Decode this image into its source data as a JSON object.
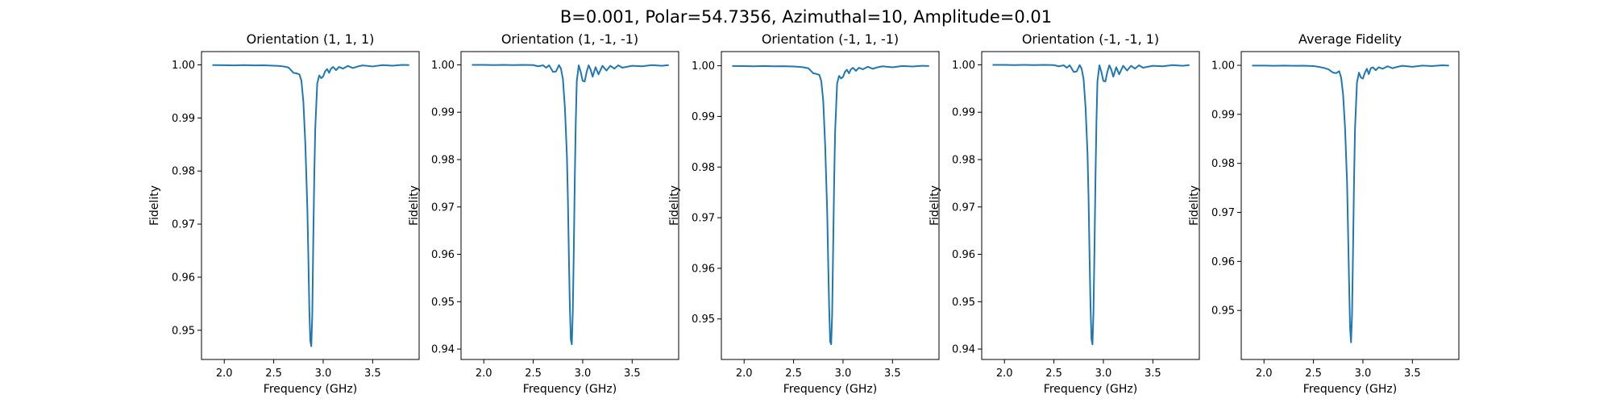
{
  "figure": {
    "suptitle": "B=0.001, Polar=54.7356, Azimuthal=10, Amplitude=0.01"
  },
  "chart_data": [
    {
      "type": "line",
      "title": "Orientation (1, 1, 1)",
      "xlabel": "Frequency (GHz)",
      "ylabel": "Fidelity",
      "xlim": [
        1.77,
        3.97
      ],
      "ylim": [
        0.9445,
        1.0025
      ],
      "xticks": [
        "2.0",
        "2.5",
        "3.0",
        "3.5"
      ],
      "yticks": [
        "0.95",
        "0.96",
        "0.97",
        "0.98",
        "0.99",
        "1.00"
      ],
      "grid": false,
      "color": "#1f77b4",
      "x": [
        1.88,
        2.0,
        2.1,
        2.2,
        2.3,
        2.4,
        2.5,
        2.55,
        2.6,
        2.65,
        2.7,
        2.73,
        2.76,
        2.78,
        2.8,
        2.82,
        2.84,
        2.85,
        2.86,
        2.87,
        2.88,
        2.89,
        2.9,
        2.91,
        2.92,
        2.94,
        2.96,
        2.98,
        3.0,
        3.02,
        3.04,
        3.06,
        3.08,
        3.1,
        3.13,
        3.16,
        3.2,
        3.25,
        3.3,
        3.35,
        3.4,
        3.5,
        3.6,
        3.7,
        3.8,
        3.87
      ],
      "y": [
        0.99995,
        0.99994,
        0.9999,
        0.99995,
        0.9999,
        0.99992,
        0.99985,
        0.9998,
        0.9997,
        0.9995,
        0.9985,
        0.9984,
        0.9982,
        0.997,
        0.993,
        0.985,
        0.973,
        0.964,
        0.954,
        0.948,
        0.947,
        0.953,
        0.967,
        0.979,
        0.988,
        0.9965,
        0.998,
        0.9975,
        0.9978,
        0.9988,
        0.9992,
        0.9985,
        0.9993,
        0.9996,
        0.999,
        0.9996,
        0.9993,
        0.9998,
        0.9994,
        0.9997,
        0.9999,
        0.9997,
        0.99995,
        0.99985,
        1.0,
        0.99995
      ]
    },
    {
      "type": "line",
      "title": "Orientation (1, -1, -1)",
      "xlabel": "Frequency (GHz)",
      "ylabel": "Fidelity",
      "xlim": [
        1.77,
        3.97
      ],
      "ylim": [
        0.9378,
        1.0028
      ],
      "xticks": [
        "2.0",
        "2.5",
        "3.0",
        "3.5"
      ],
      "yticks": [
        "0.94",
        "0.95",
        "0.96",
        "0.97",
        "0.98",
        "0.99",
        "1.00"
      ],
      "grid": false,
      "color": "#1f77b4",
      "x": [
        1.88,
        2.0,
        2.1,
        2.2,
        2.3,
        2.4,
        2.5,
        2.55,
        2.6,
        2.63,
        2.66,
        2.7,
        2.73,
        2.76,
        2.78,
        2.8,
        2.82,
        2.84,
        2.85,
        2.86,
        2.87,
        2.88,
        2.89,
        2.9,
        2.91,
        2.92,
        2.93,
        2.94,
        2.96,
        2.98,
        3.0,
        3.02,
        3.04,
        3.06,
        3.08,
        3.1,
        3.13,
        3.16,
        3.2,
        3.24,
        3.28,
        3.32,
        3.36,
        3.4,
        3.5,
        3.6,
        3.7,
        3.8,
        3.87
      ],
      "y": [
        1.0,
        1.0,
        0.99995,
        1.0,
        0.99995,
        1.0,
        0.99995,
        0.9997,
        0.9999,
        0.9994,
        0.9999,
        0.9985,
        0.9986,
        0.99995,
        0.9992,
        0.997,
        0.991,
        0.981,
        0.972,
        0.96,
        0.949,
        0.942,
        0.941,
        0.948,
        0.961,
        0.976,
        0.988,
        0.9965,
        0.9999,
        0.9985,
        0.9966,
        0.9965,
        0.9985,
        0.9999,
        0.999,
        0.9975,
        0.9995,
        0.998,
        0.9998,
        0.9988,
        0.9998,
        0.9992,
        0.9999,
        0.9994,
        0.9998,
        0.9997,
        0.99995,
        0.9998,
        0.99995
      ]
    },
    {
      "type": "line",
      "title": "Orientation (-1, 1, -1)",
      "xlabel": "Frequency (GHz)",
      "ylabel": "Fidelity",
      "xlim": [
        1.77,
        3.97
      ],
      "ylim": [
        0.942,
        1.0028
      ],
      "xticks": [
        "2.0",
        "2.5",
        "3.0",
        "3.5"
      ],
      "yticks": [
        "0.95",
        "0.96",
        "0.97",
        "0.98",
        "0.99",
        "1.00"
      ],
      "grid": false,
      "color": "#1f77b4",
      "x": [
        1.88,
        2.0,
        2.1,
        2.2,
        2.3,
        2.4,
        2.5,
        2.55,
        2.6,
        2.65,
        2.7,
        2.73,
        2.76,
        2.78,
        2.8,
        2.82,
        2.84,
        2.85,
        2.86,
        2.87,
        2.88,
        2.89,
        2.9,
        2.91,
        2.92,
        2.94,
        2.96,
        2.98,
        3.0,
        3.02,
        3.04,
        3.06,
        3.08,
        3.1,
        3.13,
        3.16,
        3.2,
        3.25,
        3.3,
        3.35,
        3.4,
        3.5,
        3.6,
        3.7,
        3.8,
        3.87
      ],
      "y": [
        0.99995,
        0.99994,
        0.9999,
        0.99995,
        0.9999,
        0.99992,
        0.99985,
        0.9998,
        0.9997,
        0.9995,
        0.9985,
        0.9984,
        0.9982,
        0.997,
        0.993,
        0.984,
        0.971,
        0.961,
        0.952,
        0.9455,
        0.945,
        0.951,
        0.964,
        0.977,
        0.987,
        0.9965,
        0.998,
        0.9975,
        0.9978,
        0.9988,
        0.9992,
        0.9985,
        0.9993,
        0.9996,
        0.999,
        0.9996,
        0.9993,
        0.9998,
        0.9994,
        0.9997,
        0.9999,
        0.9997,
        0.99995,
        0.99985,
        1.0,
        0.99995
      ]
    },
    {
      "type": "line",
      "title": "Orientation (-1, -1, 1)",
      "xlabel": "Frequency (GHz)",
      "ylabel": "Fidelity",
      "xlim": [
        1.77,
        3.97
      ],
      "ylim": [
        0.9378,
        1.0028
      ],
      "xticks": [
        "2.0",
        "2.5",
        "3.0",
        "3.5"
      ],
      "yticks": [
        "0.94",
        "0.95",
        "0.96",
        "0.97",
        "0.98",
        "0.99",
        "1.00"
      ],
      "grid": false,
      "color": "#1f77b4",
      "x": [
        1.88,
        2.0,
        2.1,
        2.2,
        2.3,
        2.4,
        2.5,
        2.55,
        2.6,
        2.63,
        2.66,
        2.7,
        2.73,
        2.76,
        2.78,
        2.8,
        2.82,
        2.84,
        2.85,
        2.86,
        2.87,
        2.88,
        2.89,
        2.9,
        2.91,
        2.92,
        2.93,
        2.94,
        2.96,
        2.98,
        3.0,
        3.02,
        3.04,
        3.06,
        3.08,
        3.1,
        3.13,
        3.16,
        3.2,
        3.24,
        3.28,
        3.32,
        3.36,
        3.4,
        3.5,
        3.6,
        3.7,
        3.8,
        3.87
      ],
      "y": [
        1.0,
        1.0,
        0.99995,
        1.0,
        0.99995,
        1.0,
        0.99995,
        0.9997,
        0.9999,
        0.9994,
        0.9999,
        0.9985,
        0.9986,
        0.99995,
        0.9992,
        0.997,
        0.991,
        0.981,
        0.972,
        0.96,
        0.949,
        0.942,
        0.941,
        0.948,
        0.961,
        0.976,
        0.988,
        0.9965,
        0.9999,
        0.9985,
        0.9966,
        0.9965,
        0.9985,
        0.9999,
        0.999,
        0.9975,
        0.9995,
        0.998,
        0.9998,
        0.9988,
        0.9998,
        0.9992,
        0.9999,
        0.9994,
        0.9998,
        0.9997,
        0.99995,
        0.9998,
        0.99995
      ]
    },
    {
      "type": "line",
      "title": "Average Fidelity",
      "xlabel": "Frequency (GHz)",
      "ylabel": "Fidelity",
      "xlim": [
        1.77,
        3.97
      ],
      "ylim": [
        0.94,
        1.0028
      ],
      "xticks": [
        "2.0",
        "2.5",
        "3.0",
        "3.5"
      ],
      "yticks": [
        "0.95",
        "0.96",
        "0.97",
        "0.98",
        "0.99",
        "1.00"
      ],
      "grid": false,
      "color": "#1f77b4",
      "x": [
        1.88,
        2.0,
        2.1,
        2.2,
        2.3,
        2.4,
        2.5,
        2.55,
        2.6,
        2.65,
        2.7,
        2.73,
        2.76,
        2.78,
        2.8,
        2.82,
        2.84,
        2.85,
        2.86,
        2.87,
        2.88,
        2.89,
        2.9,
        2.91,
        2.92,
        2.94,
        2.96,
        2.98,
        3.0,
        3.02,
        3.04,
        3.06,
        3.08,
        3.1,
        3.13,
        3.16,
        3.2,
        3.25,
        3.3,
        3.35,
        3.4,
        3.5,
        3.6,
        3.7,
        3.8,
        3.87
      ],
      "y": [
        0.99995,
        0.99994,
        0.9999,
        0.99995,
        0.9999,
        0.99992,
        0.99985,
        0.9997,
        0.9995,
        0.9992,
        0.9985,
        0.9984,
        0.9988,
        0.9975,
        0.994,
        0.987,
        0.976,
        0.966,
        0.956,
        0.9465,
        0.9435,
        0.949,
        0.962,
        0.976,
        0.987,
        0.9965,
        0.9985,
        0.9975,
        0.9973,
        0.9985,
        0.9993,
        0.9982,
        0.9994,
        0.9996,
        0.999,
        0.9996,
        0.9993,
        0.9998,
        0.9994,
        0.9997,
        0.9999,
        0.9997,
        0.99995,
        0.99985,
        1.0,
        0.99995
      ]
    }
  ]
}
